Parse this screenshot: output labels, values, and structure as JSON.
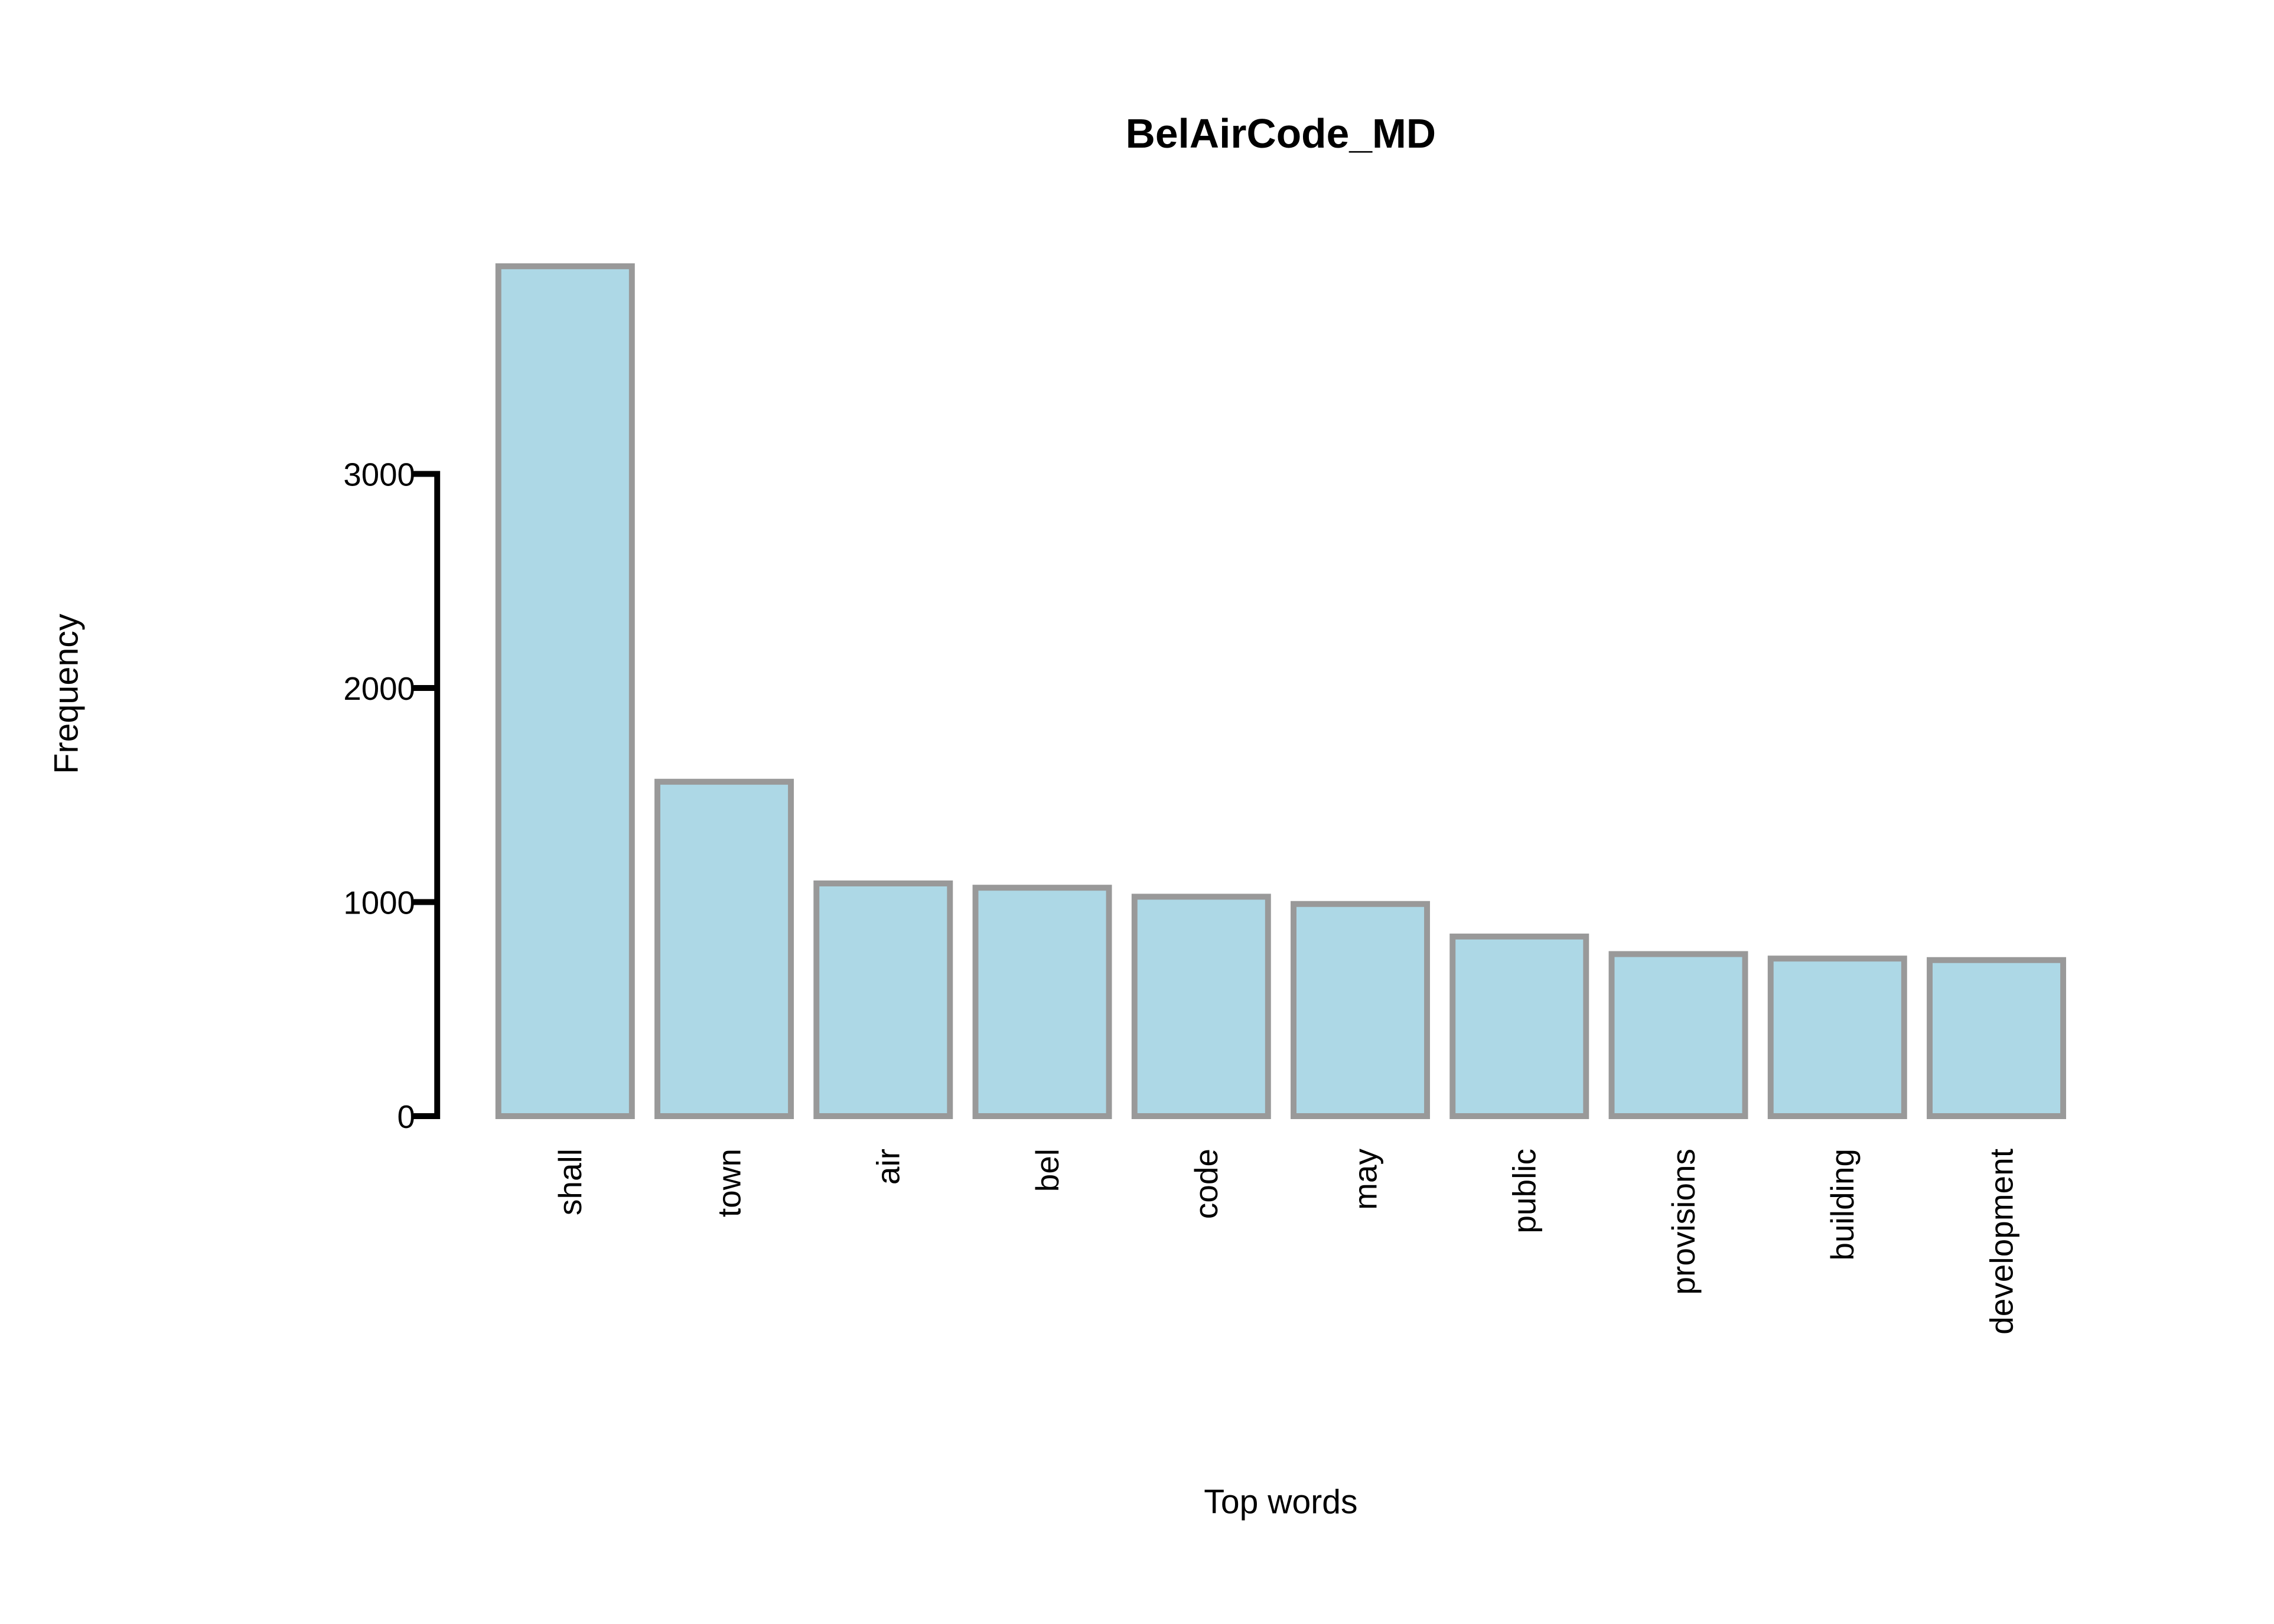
{
  "chart_data": {
    "type": "bar",
    "title": "BelAirCode_MD",
    "x_label": "Top words",
    "y_label": "Frequency",
    "categories": [
      "shall",
      "town",
      "air",
      "bel",
      "code",
      "may",
      "public",
      "provisions",
      "building",
      "development"
    ],
    "values": [
      3970,
      1562,
      1087,
      1067,
      1025,
      991,
      839,
      757,
      736,
      729
    ],
    "color": "#add8e6",
    "edge_color": "#999999",
    "ylim": [
      0,
      4000
    ],
    "yticks": [
      0,
      1000,
      2000,
      3000
    ],
    "grid": false
  }
}
